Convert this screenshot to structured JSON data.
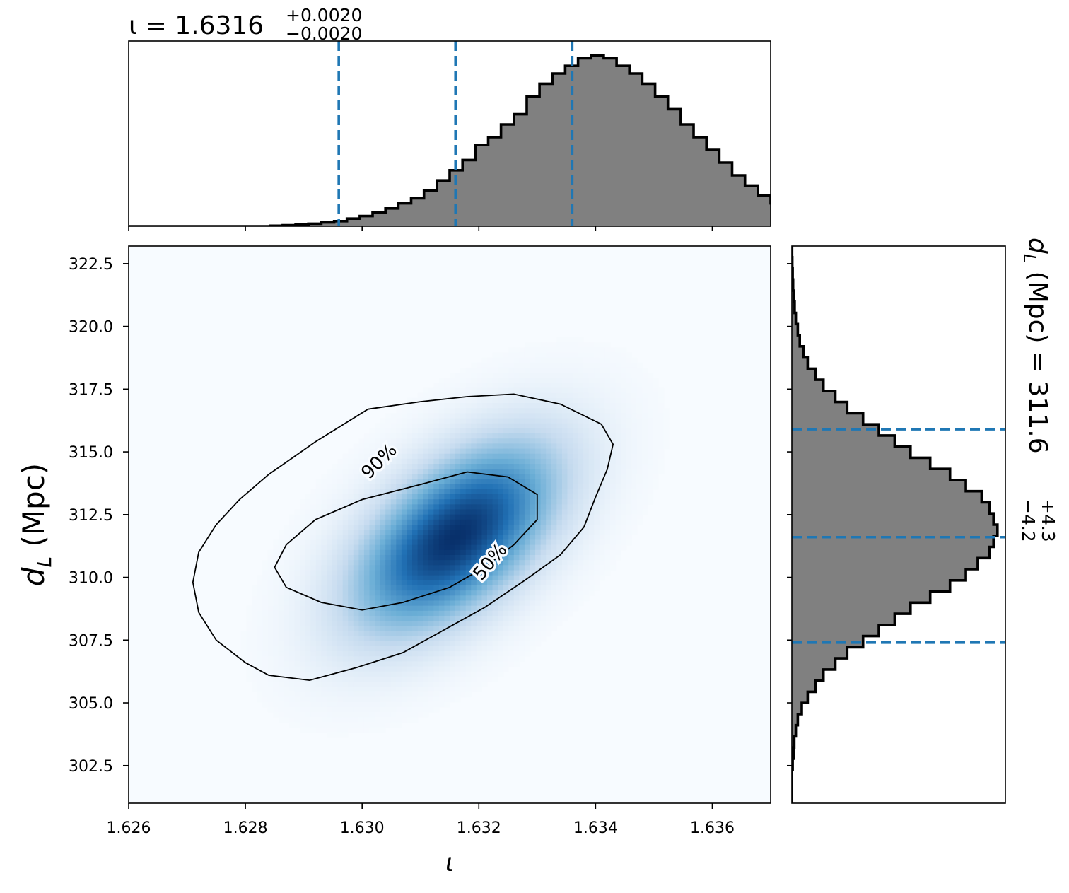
{
  "chart_data": [
    {
      "type": "histogram",
      "panel": "iota-marginal",
      "title": {
        "symbol": "ι",
        "equals": " = ",
        "median": "1.6316",
        "plus": "+0.0020",
        "minus": "−0.0020"
      },
      "xlim": [
        1.626,
        1.637
      ],
      "bins": {
        "start": 1.626,
        "width": 0.00022,
        "counts": [
          0,
          0,
          0,
          0,
          0,
          0,
          0,
          0,
          0,
          0,
          0,
          0.2,
          0.4,
          0.7,
          1,
          1.5,
          2,
          3,
          4,
          5.5,
          7,
          9,
          11,
          14,
          18,
          22,
          26,
          32,
          35,
          40,
          44,
          51,
          56,
          60,
          63,
          66,
          67,
          66,
          63,
          60,
          56,
          51,
          46,
          40,
          35,
          30,
          25,
          20,
          16,
          12,
          9,
          7,
          5,
          3.5,
          2.5,
          1.5,
          1,
          0.5,
          0.3,
          0.2,
          0.1,
          0.1,
          0,
          0,
          0
        ]
      },
      "ymax": 70,
      "quantile_lines": [
        1.6296,
        1.6316,
        1.6336
      ],
      "line_color": "#1f77b4",
      "hist_fill": "#808080"
    },
    {
      "type": "heatmap",
      "panel": "joint-posterior",
      "xlabel": "ι",
      "ylabel_symbol": "d",
      "ylabel_sub": "L",
      "ylabel_unit": " (Mpc)",
      "xlim": [
        1.626,
        1.637
      ],
      "ylim": [
        301.0,
        323.2
      ],
      "x_ticks": [
        1.626,
        1.628,
        1.63,
        1.632,
        1.634,
        1.636
      ],
      "x_tick_labels": [
        "1.626",
        "1.628",
        "1.630",
        "1.632",
        "1.634",
        "1.636"
      ],
      "y_ticks": [
        302.5,
        305.0,
        307.5,
        310.0,
        312.5,
        315.0,
        317.5,
        320.0,
        322.5
      ],
      "y_tick_labels": [
        "302.5",
        "305.0",
        "307.5",
        "310.0",
        "312.5",
        "315.0",
        "317.5",
        "320.0",
        "322.5"
      ],
      "colormap": "Blues",
      "density_center": [
        1.6316,
        311.6
      ],
      "density_sigma": [
        0.0012,
        2.6
      ],
      "density_corr": 0.55,
      "contours": [
        {
          "label": "90%",
          "points": [
            [
              1.6301,
              316.7
            ],
            [
              1.631,
              317.0
            ],
            [
              1.6318,
              317.2
            ],
            [
              1.6326,
              317.3
            ],
            [
              1.6334,
              316.9
            ],
            [
              1.6341,
              316.1
            ],
            [
              1.6343,
              315.3
            ],
            [
              1.6342,
              314.3
            ],
            [
              1.634,
              313.2
            ],
            [
              1.6338,
              312.0
            ],
            [
              1.6334,
              310.9
            ],
            [
              1.6328,
              309.9
            ],
            [
              1.6321,
              308.8
            ],
            [
              1.6314,
              307.9
            ],
            [
              1.6307,
              307.0
            ],
            [
              1.6299,
              306.4
            ],
            [
              1.6291,
              305.9
            ],
            [
              1.6284,
              306.1
            ],
            [
              1.628,
              306.6
            ],
            [
              1.6275,
              307.5
            ],
            [
              1.6272,
              308.6
            ],
            [
              1.6271,
              309.8
            ],
            [
              1.6272,
              311.0
            ],
            [
              1.6275,
              312.1
            ],
            [
              1.6279,
              313.1
            ],
            [
              1.6284,
              314.1
            ],
            [
              1.6292,
              315.4
            ]
          ]
        },
        {
          "label": "50%",
          "points": [
            [
              1.631,
              313.7
            ],
            [
              1.6318,
              314.2
            ],
            [
              1.6325,
              314.0
            ],
            [
              1.633,
              313.3
            ],
            [
              1.633,
              312.3
            ],
            [
              1.6326,
              311.3
            ],
            [
              1.6321,
              310.4
            ],
            [
              1.6315,
              309.6
            ],
            [
              1.6307,
              309.0
            ],
            [
              1.63,
              308.7
            ],
            [
              1.6293,
              309.0
            ],
            [
              1.6287,
              309.6
            ],
            [
              1.6285,
              310.4
            ],
            [
              1.6287,
              311.3
            ],
            [
              1.6292,
              312.3
            ],
            [
              1.63,
              313.1
            ]
          ]
        }
      ],
      "contour_label_positions": [
        {
          "label": "90%",
          "at": [
            1.6303,
            314.6
          ],
          "angle": -45
        },
        {
          "label": "50%",
          "at": [
            1.6322,
            310.6
          ],
          "angle": -50
        }
      ]
    },
    {
      "type": "histogram",
      "orientation": "horizontal",
      "panel": "dl-marginal",
      "title": {
        "symbol": "d",
        "sub": "L",
        "unit_equals": " (Mpc) = ",
        "median": "311.6",
        "plus": "+4.3",
        "minus": "−4.2"
      },
      "ylim": [
        301.0,
        323.2
      ],
      "bins": {
        "start": 301.0,
        "width": 0.444,
        "counts": [
          0,
          0,
          0,
          0.2,
          0.4,
          0.6,
          1,
          1.5,
          2.5,
          4,
          6,
          8,
          11,
          14,
          18,
          22,
          26,
          30,
          35,
          40,
          44,
          47,
          50,
          51,
          52,
          51,
          50,
          48,
          44,
          40,
          35,
          30,
          26,
          22,
          18,
          14,
          11,
          8,
          6,
          4,
          3,
          2,
          1.5,
          1,
          0.7,
          0.5,
          0.3,
          0.2,
          0.1,
          0.05
        ]
      },
      "xmax": 54,
      "quantile_lines": [
        307.4,
        311.6,
        315.9
      ],
      "line_color": "#1f77b4",
      "hist_fill": "#808080"
    }
  ]
}
